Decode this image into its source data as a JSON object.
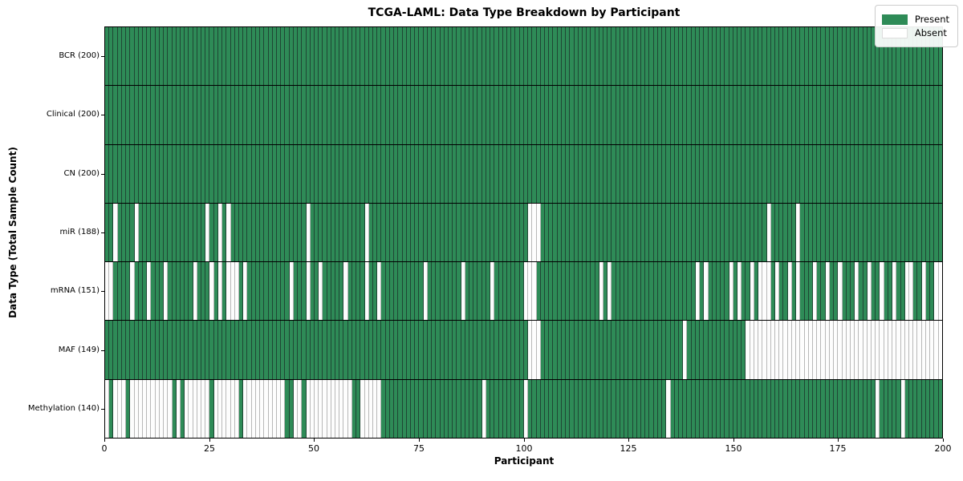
{
  "chart_data": {
    "type": "heatmap",
    "title": "TCGA-LAML: Data Type Breakdown by Participant",
    "xlabel": "Participant",
    "ylabel": "Data Type (Total Sample Count)",
    "x_axis": {
      "min": 0,
      "max": 200,
      "ticks": [
        0,
        25,
        50,
        75,
        100,
        125,
        150,
        175,
        200
      ]
    },
    "n_participants": 200,
    "grid": "cell-borders",
    "legend": {
      "position": "upper-right",
      "present_label": "Present",
      "absent_label": "Absent"
    },
    "colors": {
      "present": "#2e8b57",
      "absent": "#fdfdfd",
      "present_edge": "#1f4634",
      "absent_edge": "#b8b8b8",
      "row_divider": "#000000",
      "spine": "#000000"
    },
    "rows": [
      {
        "label": "BCR (200)",
        "name": "BCR",
        "total": 200,
        "absent_ranges": []
      },
      {
        "label": "Clinical (200)",
        "name": "Clinical",
        "total": 200,
        "absent_ranges": []
      },
      {
        "label": "CN (200)",
        "name": "CN",
        "total": 200,
        "absent_ranges": []
      },
      {
        "label": "miR (188)",
        "name": "miR",
        "total": 188,
        "absent_ranges": [
          [
            2,
            2
          ],
          [
            7,
            7
          ],
          [
            24,
            24
          ],
          [
            27,
            27
          ],
          [
            29,
            29
          ],
          [
            48,
            48
          ],
          [
            62,
            62
          ],
          [
            101,
            103
          ],
          [
            158,
            158
          ],
          [
            165,
            165
          ]
        ]
      },
      {
        "label": "mRNA (151)",
        "name": "mRNA",
        "total": 151,
        "absent_ranges": [
          [
            0,
            1
          ],
          [
            6,
            6
          ],
          [
            10,
            10
          ],
          [
            14,
            14
          ],
          [
            21,
            21
          ],
          [
            25,
            25
          ],
          [
            27,
            27
          ],
          [
            29,
            31
          ],
          [
            33,
            33
          ],
          [
            44,
            44
          ],
          [
            48,
            48
          ],
          [
            51,
            51
          ],
          [
            57,
            57
          ],
          [
            62,
            62
          ],
          [
            65,
            65
          ],
          [
            76,
            76
          ],
          [
            85,
            85
          ],
          [
            92,
            92
          ],
          [
            100,
            102
          ],
          [
            118,
            118
          ],
          [
            120,
            120
          ],
          [
            141,
            141
          ],
          [
            143,
            143
          ],
          [
            149,
            149
          ],
          [
            151,
            151
          ],
          [
            154,
            154
          ],
          [
            156,
            158
          ],
          [
            160,
            160
          ],
          [
            163,
            163
          ],
          [
            165,
            165
          ],
          [
            169,
            169
          ],
          [
            172,
            172
          ],
          [
            175,
            175
          ],
          [
            179,
            179
          ],
          [
            182,
            182
          ],
          [
            185,
            185
          ],
          [
            188,
            188
          ],
          [
            191,
            192
          ],
          [
            195,
            195
          ],
          [
            198,
            199
          ]
        ]
      },
      {
        "label": "MAF (149)",
        "name": "MAF",
        "total": 149,
        "absent_ranges": [
          [
            101,
            103
          ],
          [
            138,
            138
          ],
          [
            153,
            199
          ]
        ]
      },
      {
        "label": "Methylation (140)",
        "name": "Methylation",
        "total": 140,
        "absent_ranges": [
          [
            0,
            0
          ],
          [
            2,
            4
          ],
          [
            6,
            15
          ],
          [
            17,
            17
          ],
          [
            19,
            24
          ],
          [
            26,
            31
          ],
          [
            33,
            42
          ],
          [
            45,
            46
          ],
          [
            48,
            58
          ],
          [
            61,
            65
          ],
          [
            90,
            90
          ],
          [
            100,
            100
          ],
          [
            134,
            134
          ],
          [
            184,
            184
          ],
          [
            190,
            190
          ]
        ]
      }
    ]
  }
}
